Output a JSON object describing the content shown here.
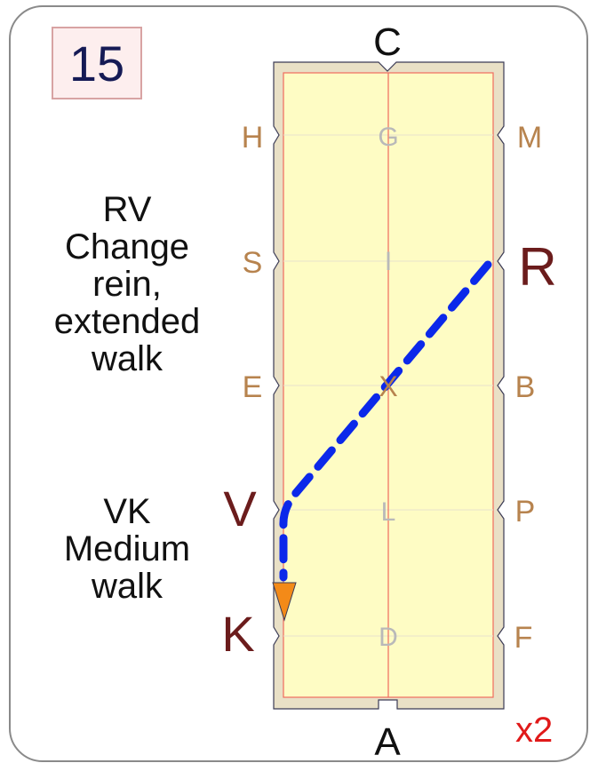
{
  "card": {
    "number": "15",
    "repeat": "x2"
  },
  "movements": [
    {
      "lines": [
        "RV",
        "Change",
        "rein,",
        "extended",
        "walk"
      ]
    },
    {
      "lines": [
        "VK",
        "Medium",
        "walk"
      ]
    }
  ],
  "arena": {
    "letters": {
      "C": "C",
      "A": "A",
      "H": "H",
      "S": "S",
      "E": "E",
      "V": "V",
      "K": "K",
      "M": "M",
      "R": "R",
      "B": "B",
      "P": "P",
      "F": "F",
      "G": "G",
      "I": "I",
      "X": "X",
      "L": "L",
      "D": "D"
    },
    "colors": {
      "sand": "#fefcc4",
      "fence": "#e9e0c6",
      "centerline": "#f06b5e",
      "outline": "#3b3b55",
      "letter_normal": "#b7834e",
      "letter_highlight": "#6b1c1c",
      "letter_inner": "#b9b9b9",
      "path": "#0b28ea",
      "arrow": "#f38a18"
    }
  }
}
